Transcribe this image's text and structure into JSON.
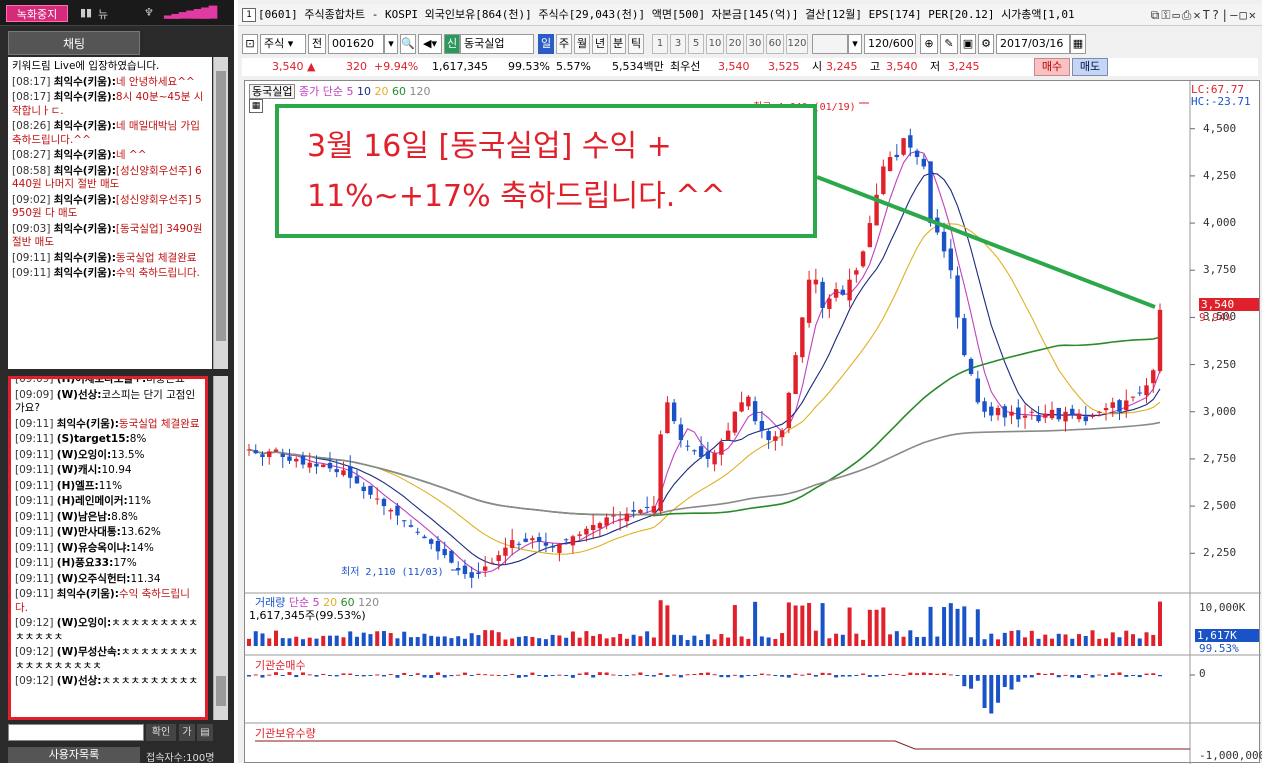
{
  "left": {
    "record_label": "녹화중지",
    "topbar_icons": [
      "■■",
      "뉴",
      "♥"
    ],
    "chat_header": "채팅",
    "messages_top": [
      {
        "time": "",
        "name": "",
        "text": "키워드림 Live에 입장하였습니다.",
        "red": false
      },
      {
        "time": "[08:17]",
        "name": "최익수(키움):",
        "text": "네 안녕하세요^^",
        "red": true
      },
      {
        "time": "[08:17]",
        "name": "최익수(키움):",
        "text": "8시 40분~45분 시작합니ㅏㄷ.",
        "red": true
      },
      {
        "time": "[08:26]",
        "name": "최익수(키움):",
        "text": "네 매일대박님 가입축하드립니다.^^",
        "red": true
      },
      {
        "time": "[08:27]",
        "name": "최익수(키움):",
        "text": "네 ^^",
        "red": true
      },
      {
        "time": "[08:58]",
        "name": "최익수(키움):",
        "text": "[성신양회우선주] 6440원 나머지 절반 매도",
        "red": true
      },
      {
        "time": "[09:02]",
        "name": "최익수(키움):",
        "text": "[성신양회우선주] 5950원 다 매도",
        "red": true
      },
      {
        "time": "[09:03]",
        "name": "최익수(키움):",
        "text": "[동국실업] 3490원 절반 매도",
        "red": true
      },
      {
        "time": "[09:11]",
        "name": "최익수(키움):",
        "text": "동국실업 체결완료",
        "red": true
      },
      {
        "time": "[09:11]",
        "name": "최익수(키움):",
        "text": "수익 축하드립니다.",
        "red": true
      }
    ],
    "messages_bottom": [
      {
        "time": "[09:09]",
        "name": "(H)어제보다오늘+:",
        "text": "비중은요",
        "red": false
      },
      {
        "time": "[09:09]",
        "name": "(W)선상:",
        "text": "코스피는 단기 고점인가요?",
        "red": false
      },
      {
        "time": "[09:11]",
        "name": "최익수(키움):",
        "text": "동국실업 체결완료",
        "red": true
      },
      {
        "time": "[09:11]",
        "name": "(S)target15:",
        "text": "8%",
        "red": false
      },
      {
        "time": "[09:11]",
        "name": "(W)오잉이:",
        "text": "13.5%",
        "red": false
      },
      {
        "time": "[09:11]",
        "name": "(W)캐시:",
        "text": "10.94",
        "red": false
      },
      {
        "time": "[09:11]",
        "name": "(H)엘프:",
        "text": "11%",
        "red": false
      },
      {
        "time": "[09:11]",
        "name": "(H)레인메이커:",
        "text": "11%",
        "red": false
      },
      {
        "time": "[09:11]",
        "name": "(W)남은남:",
        "text": "8.8%",
        "red": false
      },
      {
        "time": "[09:11]",
        "name": "(W)만사대통:",
        "text": "13.62%",
        "red": false
      },
      {
        "time": "[09:11]",
        "name": "(W)유승옥이냐:",
        "text": "14%",
        "red": false
      },
      {
        "time": "[09:11]",
        "name": "(H)풍요33:",
        "text": "17%",
        "red": false
      },
      {
        "time": "[09:11]",
        "name": "(W)오주식헌터:",
        "text": "11.34",
        "red": false
      },
      {
        "time": "[09:11]",
        "name": "최익수(키움):",
        "text": "수익 축하드립니다.",
        "red": true
      },
      {
        "time": "[09:12]",
        "name": "(W)오잉이:",
        "text": "ㅊㅊㅊㅊㅊㅊㅊㅊㅊㅊㅊㅊㅊㅊ",
        "red": false
      },
      {
        "time": "[09:12]",
        "name": "(W)무성산속:",
        "text": "ㅊㅊㅊㅊㅊㅊㅊㅊㅊㅊㅊㅊㅊㅊㅊㅊㅊ",
        "red": false
      },
      {
        "time": "[09:12]",
        "name": "(W)선상:",
        "text": "ㅊㅊㅊㅊㅊㅊㅊㅊㅊㅊ",
        "red": false
      }
    ],
    "confirm_label": "확인",
    "add_label": "가",
    "userlist_label": "사용자목록",
    "user_count": "접속자수:100명"
  },
  "window": {
    "number": "1",
    "title": "[0601] 주식종합차트 - KOSPI 외국인보유[864(천)] 주식수[29,043(천)] 액면[500] 자본금[145(억)] 결산[12월] EPS[174] PER[20.12] 시가총액[1,01"
  },
  "toolbar": {
    "type_label": "주식",
    "market_label": "전",
    "code": "001620",
    "sin_label": "신",
    "stock_name": "동국실업",
    "periods": [
      "일",
      "주",
      "월",
      "년",
      "분",
      "틱"
    ],
    "intervals": [
      "1",
      "3",
      "5",
      "10",
      "20",
      "30",
      "60",
      "120"
    ],
    "count": "120/600",
    "date": "2017/03/16"
  },
  "pricebar": {
    "price": "3,540",
    "change": "320",
    "change_pct": "+9.94%",
    "volume": "1,617,345",
    "volume_ratio": "99.53%",
    "ratio2": "5.57%",
    "amount": "5,534백만",
    "best_label": "최우선",
    "ask": "3,540",
    "bid": "3,525",
    "open_label": "시",
    "open": "3,245",
    "high_label": "고",
    "high": "3,540",
    "low_label": "저",
    "low": "3,245",
    "buy_label": "매수",
    "sell_label": "매도"
  },
  "chart": {
    "stock_label": "동국실업",
    "legend_title": "종가 단순",
    "ma_periods": [
      "5",
      "10",
      "20",
      "60",
      "120"
    ],
    "lc": "LC:67.77",
    "hc": "HC:-23.71",
    "high_annotation": "최고 4,640 (01/19)",
    "low_annotation": "최저 2,110 (11/03)",
    "current_price": "3,540",
    "current_pct": "9.94%",
    "y_ticks": [
      "4,500",
      "4,250",
      "4,000",
      "3,750",
      "3,500",
      "3,250",
      "3,000",
      "2,750",
      "2,500",
      "2,250"
    ],
    "volume_title": "거래량",
    "volume_legend": "단순",
    "volume_ma": [
      "5",
      "20",
      "60",
      "120"
    ],
    "volume_info": "1,617,345주(99.53%)",
    "vol_tick": "10,000K",
    "vol_current": "1,617K",
    "vol_pct": "99.53%",
    "inst_title": "기관순매수",
    "inst_tick": "0",
    "hold_title": "기관보유수량",
    "hold_tick": "-1,000,000"
  },
  "annotation": {
    "line1": "3월 16일 [동국실업] 수익 +",
    "line2": "11%~+17% 축하드립니다.^^"
  },
  "colors": {
    "up": "#e0202a",
    "down": "#1a52c8",
    "ma5": "#c040c0",
    "ma10": "#1a2a80",
    "ma20": "#e0b020",
    "ma60": "#2a8a2a",
    "ma120": "#8a8a8a",
    "annotation_border": "#2aa84a"
  },
  "chart_data": {
    "type": "candlestick",
    "x_range": [
      "2016-09",
      "2017-03-16"
    ],
    "y_range": [
      2110,
      4640
    ],
    "closes": [
      2800,
      2780,
      2760,
      2790,
      2800,
      2760,
      2740,
      2750,
      2720,
      2730,
      2710,
      2720,
      2700,
      2680,
      2690,
      2650,
      2620,
      2580,
      2560,
      2540,
      2500,
      2480,
      2450,
      2420,
      2390,
      2360,
      2330,
      2300,
      2260,
      2240,
      2200,
      2160,
      2140,
      2120,
      2140,
      2180,
      2200,
      2240,
      2280,
      2320,
      2300,
      2310,
      2330,
      2310,
      2290,
      2280,
      2300,
      2320,
      2340,
      2350,
      2380,
      2400,
      2410,
      2440,
      2450,
      2430,
      2460,
      2470,
      2480,
      2490,
      2500,
      2880,
      3050,
      2950,
      2850,
      2820,
      2790,
      2760,
      2750,
      2780,
      2840,
      2900,
      3000,
      3050,
      3080,
      2950,
      2900,
      2850,
      2870,
      2900,
      3100,
      3300,
      3500,
      3700,
      3700,
      3550,
      3600,
      3650,
      3620,
      3700,
      3750,
      3850,
      4000,
      4150,
      4300,
      4350,
      4350,
      4450,
      4400,
      4350,
      4300,
      4000,
      3950,
      3850,
      3750,
      3500,
      3300,
      3200,
      3050,
      3000,
      2980,
      3020,
      2970,
      3000,
      2960,
      2980,
      3000,
      2950,
      2990,
      3010,
      2960,
      3000,
      2980,
      2990,
      2950,
      2980,
      3000,
      3020,
      3050,
      3000,
      3060,
      3080,
      3100,
      3140,
      3220,
      3540
    ],
    "annotations": [
      "최고 4,640 (01/19)",
      "최저 2,110 (11/03)"
    ],
    "ma_periods": [
      5,
      10,
      20,
      60,
      120
    ]
  }
}
